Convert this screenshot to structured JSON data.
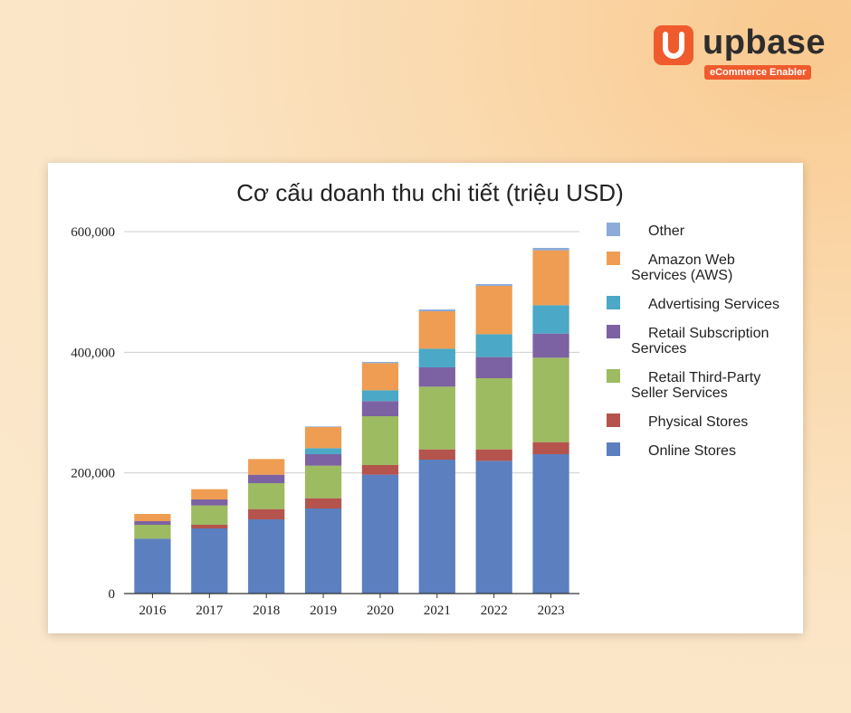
{
  "brand": {
    "name": "upbase",
    "tagline": "eCommerce Enabler",
    "color": "#ef5b2c"
  },
  "chart_data": {
    "type": "bar",
    "stacked": true,
    "title": "Cơ cấu doanh thu chi tiết (triệu USD)",
    "xlabel": "",
    "ylabel": "",
    "ylim": [
      0,
      600000
    ],
    "yticks": [
      0,
      200000,
      400000,
      600000
    ],
    "ytick_labels": [
      "0",
      "200,000",
      "400,000",
      "600,000"
    ],
    "grid": true,
    "legend_position": "right",
    "categories": [
      "2016",
      "2017",
      "2018",
      "2019",
      "2020",
      "2021",
      "2022",
      "2023"
    ],
    "series": [
      {
        "name": "Online Stores",
        "color": "#5b7fbf",
        "values": [
          91000,
          108000,
          123000,
          141000,
          197000,
          222000,
          220000,
          231000
        ]
      },
      {
        "name": "Physical Stores",
        "color": "#b5534d",
        "values": [
          0,
          6000,
          17000,
          17000,
          16000,
          17000,
          19000,
          20000
        ]
      },
      {
        "name": "Retail Third-Party\nSeller Services",
        "color": "#9dbb61",
        "values": [
          23000,
          32000,
          43000,
          54000,
          81000,
          104000,
          118000,
          140000
        ]
      },
      {
        "name": "Retail Subscription\nServices",
        "color": "#7c62a2",
        "values": [
          6000,
          10000,
          14000,
          19000,
          25000,
          32000,
          35000,
          40000
        ]
      },
      {
        "name": "Advertising Services",
        "color": "#4ba8c6",
        "values": [
          0,
          0,
          0,
          10000,
          18000,
          31000,
          38000,
          47000
        ]
      },
      {
        "name": "Amazon Web\nServices (AWS)",
        "color": "#ee9d52",
        "values": [
          12000,
          17000,
          26000,
          35000,
          45000,
          62000,
          80000,
          91000
        ]
      },
      {
        "name": "Other",
        "color": "#8cabd9",
        "values": [
          0,
          0,
          0,
          1000,
          2000,
          3000,
          3000,
          4000
        ]
      }
    ],
    "legend_order": [
      "Other",
      "Amazon Web\nServices (AWS)",
      "Advertising Services",
      "Retail Subscription\nServices",
      "Retail Third-Party\nSeller Services",
      "Physical Stores",
      "Online Stores"
    ]
  }
}
